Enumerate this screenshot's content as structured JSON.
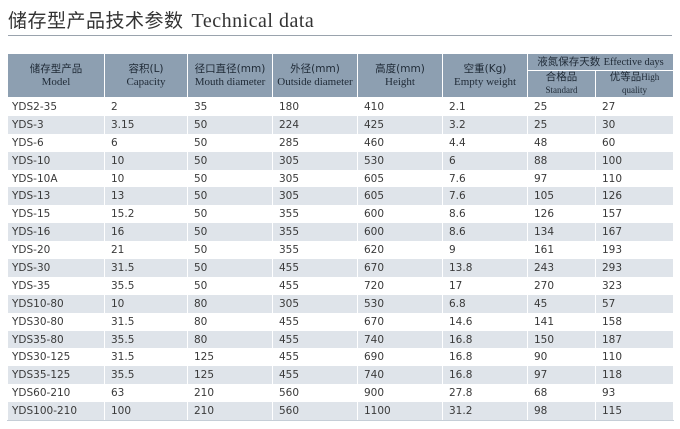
{
  "title": {
    "cn": "储存型产品技术参数",
    "en": "Technical data"
  },
  "headers": {
    "model": {
      "cn": "储存型产品",
      "en": "Model"
    },
    "capacity": {
      "cn": "容积(L)",
      "en": "Capacity"
    },
    "mouth": {
      "cn": "径口直径(mm)",
      "en": "Mouth diameter"
    },
    "outside": {
      "cn": "外径(mm)",
      "en": "Outside diameter"
    },
    "height": {
      "cn": "高度(mm)",
      "en": "Height"
    },
    "weight": {
      "cn": "空重(Kg)",
      "en": "Empty weight"
    },
    "effective": {
      "cn": "液氮保存天数",
      "en": "Effective days"
    },
    "standard": {
      "cn": "合格品",
      "en": "Standard"
    },
    "high": {
      "cn": "优等品",
      "en": "High quality"
    }
  },
  "rows": [
    [
      "YDS2-35",
      "2",
      "35",
      "180",
      "410",
      "2.1",
      "25",
      "27"
    ],
    [
      "YDS-3",
      "3.15",
      "50",
      "224",
      "425",
      "3.2",
      "25",
      "30"
    ],
    [
      "YDS-6",
      "6",
      "50",
      "285",
      "460",
      "4.4",
      "48",
      "60"
    ],
    [
      "YDS-10",
      "10",
      "50",
      "305",
      "530",
      "6",
      "88",
      "100"
    ],
    [
      "YDS-10A",
      "10",
      "50",
      "305",
      "605",
      "7.6",
      "97",
      "110"
    ],
    [
      "YDS-13",
      "13",
      "50",
      "305",
      "605",
      "7.6",
      "105",
      "126"
    ],
    [
      "YDS-15",
      "15.2",
      "50",
      "355",
      "600",
      "8.6",
      "126",
      "157"
    ],
    [
      "YDS-16",
      "16",
      "50",
      "355",
      "600",
      "8.6",
      "134",
      "167"
    ],
    [
      "YDS-20",
      "21",
      "50",
      "355",
      "620",
      "9",
      "161",
      "193"
    ],
    [
      "YDS-30",
      "31.5",
      "50",
      "455",
      "670",
      "13.8",
      "243",
      "293"
    ],
    [
      "YDS-35",
      "35.5",
      "50",
      "455",
      "720",
      "17",
      "270",
      "323"
    ],
    [
      "YDS10-80",
      "10",
      "80",
      "305",
      "530",
      "6.8",
      "45",
      "57"
    ],
    [
      "YDS30-80",
      "31.5",
      "80",
      "455",
      "670",
      "14.6",
      "141",
      "158"
    ],
    [
      "YDS35-80",
      "35.5",
      "80",
      "455",
      "740",
      "16.8",
      "150",
      "187"
    ],
    [
      "YDS30-125",
      "31.5",
      "125",
      "455",
      "690",
      "16.8",
      "90",
      "110"
    ],
    [
      "YDS35-125",
      "35.5",
      "125",
      "455",
      "740",
      "16.8",
      "97",
      "118"
    ],
    [
      "YDS60-210",
      "63",
      "210",
      "560",
      "900",
      "27.8",
      "68",
      "93"
    ],
    [
      "YDS100-210",
      "100",
      "210",
      "560",
      "1100",
      "31.2",
      "98",
      "115"
    ]
  ]
}
